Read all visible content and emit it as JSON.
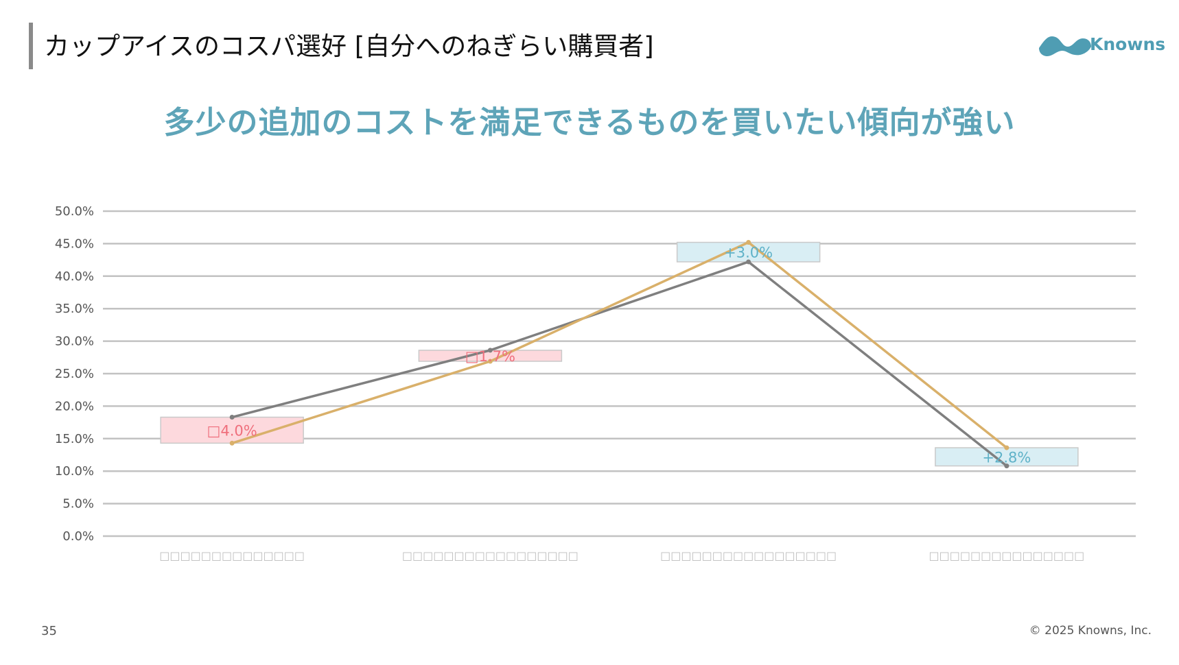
{
  "slide": {
    "title": "カップアイスのコスパ選好 [自分へのねぎらい購買者]",
    "headline": "多少の追加のコストを満足できるものを買いたい傾向が強い",
    "page_number": "35",
    "copyright": "© 2025 Knowns, Inc."
  },
  "brand": {
    "name": "Knowns",
    "logo_icon": "knowns-wave-logo",
    "color": "#4f9db3"
  },
  "chart_data": {
    "type": "line",
    "categories": [
      "□□□□□□□□□□□□□□",
      "□□□□□□□□□□□□□□□□□",
      "□□□□□□□□□□□□□□□□□",
      "□□□□□□□□□□□□□□□"
    ],
    "series": [
      {
        "color": "#7f7f7f",
        "values": [
          18.3,
          28.6,
          42.2,
          10.8
        ]
      },
      {
        "color": "#d9b06a",
        "values": [
          14.3,
          26.9,
          45.2,
          13.6
        ]
      }
    ],
    "difference_labels": [
      "□4.0%",
      "□1.7%",
      "+3.0%",
      "+2.8%"
    ],
    "difference_colors": [
      "#ef6f7c",
      "#ef6f7c",
      "#5fb2c8",
      "#5fb2c8"
    ],
    "difference_box_colors": [
      "#fdd9dd",
      "#fdd9dd",
      "#d9eef4",
      "#d9eef4"
    ],
    "ylim": [
      0,
      50
    ],
    "y_ticks": [
      "0.0%",
      "5.0%",
      "10.0%",
      "15.0%",
      "20.0%",
      "25.0%",
      "30.0%",
      "35.0%",
      "40.0%",
      "45.0%",
      "50.0%"
    ],
    "grid": true,
    "legend": "none"
  }
}
